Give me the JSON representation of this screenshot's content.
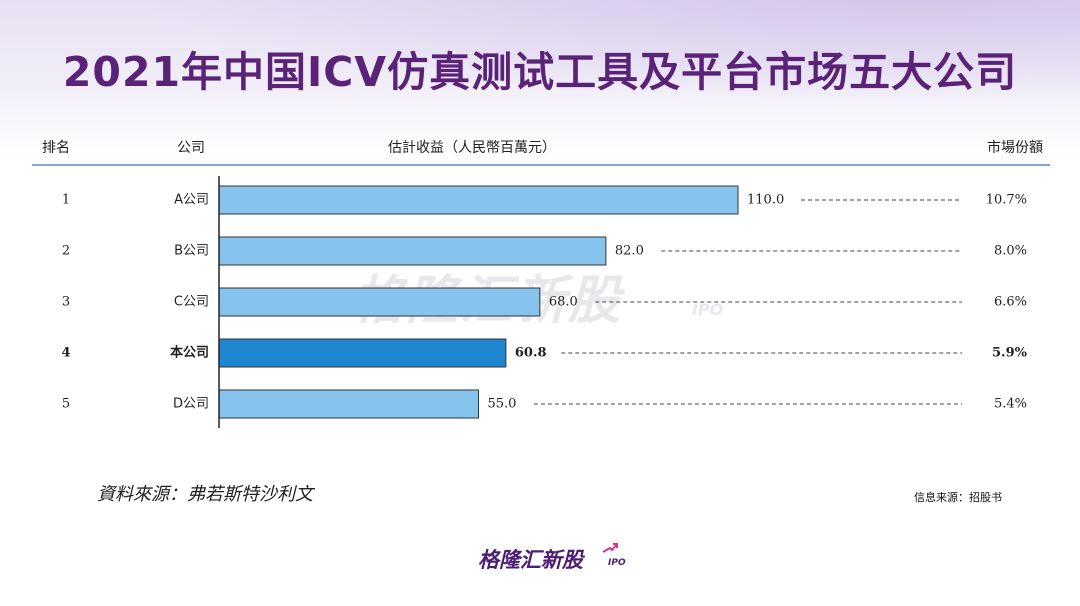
{
  "title": "2021年中国ICV仿真测试工具及平台市场五大公司",
  "table_header": {
    "rank": "排名",
    "company": "公司",
    "revenue": "估計收益（人民幣百萬元）",
    "share": "市場份額"
  },
  "watermark": {
    "text": "格隆汇新股",
    "sub": "IPO"
  },
  "source_note": "資料來源：弗若斯特沙利文",
  "info_note": "信息来源：招股书",
  "logo": {
    "text": "格隆汇新股",
    "sub": "IPO"
  },
  "colors": {
    "title": "#5a2378",
    "bar": "#86c4ee",
    "bar_highlight": "#1f87d2",
    "bar_border": "#333333"
  },
  "chart_data": {
    "type": "bar",
    "orientation": "horizontal",
    "ranks": [
      "1",
      "2",
      "3",
      "4",
      "5"
    ],
    "categories": [
      "A公司",
      "B公司",
      "C公司",
      "本公司",
      "D公司"
    ],
    "values": [
      110.0,
      82.0,
      68.0,
      60.8,
      55.0
    ],
    "value_labels": [
      "110.0",
      "82.0",
      "68.0",
      "60.8",
      "55.0"
    ],
    "shares": [
      "10.7%",
      "8.0%",
      "6.6%",
      "5.9%",
      "5.4%"
    ],
    "highlight_index": 3,
    "title": "",
    "xlabel": "估計收益（人民幣百萬元）",
    "ylabel": "",
    "xlim": [
      0,
      110
    ]
  }
}
